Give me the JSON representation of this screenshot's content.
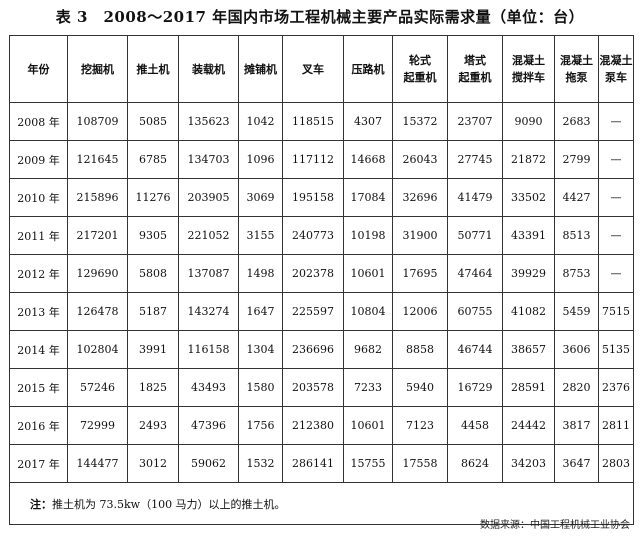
{
  "title": "表 3　2008～2017 年国内市场工程机械主要产品实际需求量（单位：台）",
  "headers": [
    [
      "年份"
    ],
    [
      "挖掘机"
    ],
    [
      "推土机"
    ],
    [
      "装载机"
    ],
    [
      "摊铺机"
    ],
    [
      "叉车"
    ],
    [
      "压路机"
    ],
    [
      "轮式",
      "起重机"
    ],
    [
      "塔式",
      "起重机"
    ],
    [
      "混凝土",
      "搅拌车"
    ],
    [
      "混凝土",
      "拖泵"
    ],
    [
      "混凝土",
      "泵车"
    ]
  ],
  "rows": [
    [
      "2008 年",
      "108709",
      "5085",
      "135623",
      "1042",
      "118515",
      "4307",
      "15372",
      "23707",
      "9090",
      "2683",
      "—"
    ],
    [
      "2009 年",
      "121645",
      "6785",
      "134703",
      "1096",
      "117112",
      "14668",
      "26043",
      "27745",
      "21872",
      "2799",
      "—"
    ],
    [
      "2010 年",
      "215896",
      "11276",
      "203905",
      "3069",
      "195158",
      "17084",
      "32696",
      "41479",
      "33502",
      "4427",
      "—"
    ],
    [
      "2011 年",
      "217201",
      "9305",
      "221052",
      "3155",
      "240773",
      "10198",
      "31900",
      "50771",
      "43391",
      "8513",
      "—"
    ],
    [
      "2012 年",
      "129690",
      "5808",
      "137087",
      "1498",
      "202378",
      "10601",
      "17695",
      "47464",
      "39929",
      "8753",
      "—"
    ],
    [
      "2013 年",
      "126478",
      "5187",
      "143274",
      "1647",
      "225597",
      "10804",
      "12006",
      "60755",
      "41082",
      "5459",
      "7515"
    ],
    [
      "2014 年",
      "102804",
      "3991",
      "116158",
      "1304",
      "236696",
      "9682",
      "8858",
      "46744",
      "38657",
      "3606",
      "5135"
    ],
    [
      "2015 年",
      "57246",
      "1825",
      "43493",
      "1580",
      "203578",
      "7233",
      "5940",
      "16729",
      "28591",
      "2820",
      "2376"
    ],
    [
      "2016 年",
      "72999",
      "2493",
      "47396",
      "1756",
      "212380",
      "10601",
      "7123",
      "4458",
      "24442",
      "3817",
      "2811"
    ],
    [
      "2017 年",
      "144477",
      "3012",
      "59062",
      "1532",
      "286141",
      "15755",
      "17558",
      "8624",
      "34203",
      "3647",
      "2803"
    ]
  ],
  "note": {
    "label": "注：",
    "text": "推土机为 73.5kw（100 马力）以上的推土机。"
  },
  "source": "数据来源：中国工程机械工业协会"
}
